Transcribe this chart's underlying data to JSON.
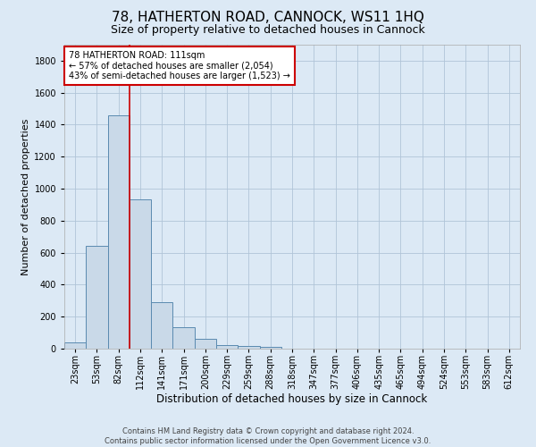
{
  "title": "78, HATHERTON ROAD, CANNOCK, WS11 1HQ",
  "subtitle": "Size of property relative to detached houses in Cannock",
  "xlabel": "Distribution of detached houses by size in Cannock",
  "ylabel": "Number of detached properties",
  "footer_line1": "Contains HM Land Registry data © Crown copyright and database right 2024.",
  "footer_line2": "Contains public sector information licensed under the Open Government Licence v3.0.",
  "bin_labels": [
    "23sqm",
    "53sqm",
    "82sqm",
    "112sqm",
    "141sqm",
    "171sqm",
    "200sqm",
    "229sqm",
    "259sqm",
    "288sqm",
    "318sqm",
    "347sqm",
    "377sqm",
    "406sqm",
    "435sqm",
    "465sqm",
    "494sqm",
    "524sqm",
    "553sqm",
    "583sqm",
    "612sqm"
  ],
  "bar_values": [
    40,
    645,
    1460,
    935,
    290,
    135,
    60,
    25,
    15,
    10,
    0,
    0,
    0,
    0,
    0,
    0,
    0,
    0,
    0,
    0,
    0
  ],
  "bar_color": "#c9d9e8",
  "bar_edge_color": "#5a8ab0",
  "vline_color": "#cc0000",
  "annotation_text": "78 HATHERTON ROAD: 111sqm\n← 57% of detached houses are smaller (2,054)\n43% of semi-detached houses are larger (1,523) →",
  "annotation_box_color": "#ffffff",
  "annotation_box_edge_color": "#cc0000",
  "ylim": [
    0,
    1900
  ],
  "yticks": [
    0,
    200,
    400,
    600,
    800,
    1000,
    1200,
    1400,
    1600,
    1800
  ],
  "grid_color": "#b0c4d8",
  "background_color": "#dce9f5",
  "plot_bg_color": "#dce9f5",
  "title_fontsize": 11,
  "subtitle_fontsize": 9,
  "ylabel_fontsize": 8,
  "xlabel_fontsize": 8.5,
  "tick_fontsize": 7,
  "annot_fontsize": 7,
  "footer_fontsize": 6
}
